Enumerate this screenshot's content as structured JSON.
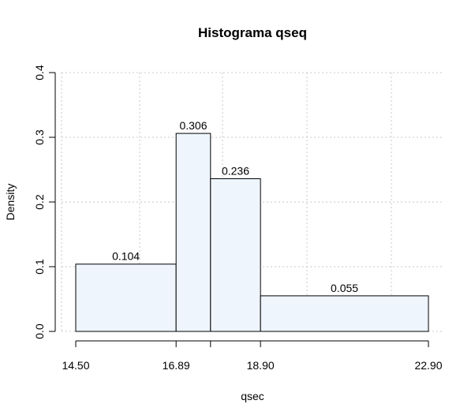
{
  "chart_data": {
    "type": "bar",
    "title": "Histograma qseq",
    "xlabel": "qsec",
    "ylabel": "Density",
    "ylim": [
      0,
      0.4
    ],
    "y_ticks": [
      "0.0",
      "0.1",
      "0.2",
      "0.3",
      "0.4"
    ],
    "x_ticks": [
      "14.50",
      "16.89",
      "18.90",
      "22.90"
    ],
    "x_tick_values": [
      14.5,
      16.89,
      18.9,
      22.9
    ],
    "x_minor_tick_values": [
      17.71
    ],
    "grid": true,
    "bins": [
      {
        "start": 14.5,
        "end": 16.89,
        "density": 0.104,
        "label": "0.104"
      },
      {
        "start": 16.89,
        "end": 17.71,
        "density": 0.306,
        "label": "0.306"
      },
      {
        "start": 17.71,
        "end": 18.9,
        "density": 0.236,
        "label": "0.236"
      },
      {
        "start": 18.9,
        "end": 22.9,
        "density": 0.055,
        "label": "0.055"
      }
    ],
    "colors": {
      "bar_fill": "#eef5fd",
      "bar_stroke": "#000000",
      "grid": "#c8c8c8"
    }
  }
}
